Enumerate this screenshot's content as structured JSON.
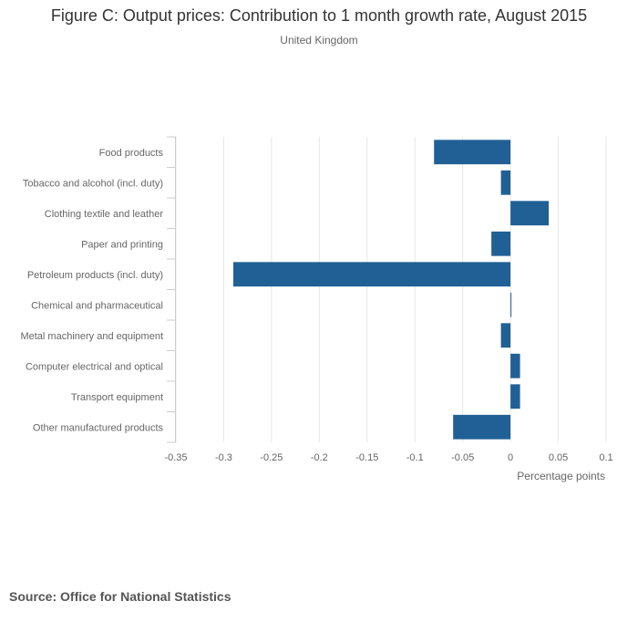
{
  "header": {
    "title": "Figure C: Output prices: Contribution to 1 month growth rate, August 2015",
    "subtitle": "United Kingdom"
  },
  "footer": {
    "source": "Source: Office for National Statistics"
  },
  "colors": {
    "bar": "#206095",
    "grid": "#e6e6e6",
    "axis_text": "#666666"
  },
  "chart_data": {
    "type": "bar",
    "orientation": "horizontal",
    "title": "Figure C: Output prices: Contribution to 1 month growth rate, August 2015",
    "subtitle": "United Kingdom",
    "xlabel": "Percentage points",
    "ylabel": "",
    "xlim": [
      -0.35,
      0.1
    ],
    "xticks": [
      -0.35,
      -0.3,
      -0.25,
      -0.2,
      -0.15,
      -0.1,
      -0.05,
      0,
      0.05,
      0.1
    ],
    "xtick_labels": [
      "-0.35",
      "-0.3",
      "-0.25",
      "-0.2",
      "-0.15",
      "-0.1",
      "-0.05",
      "0",
      "0.05",
      "0.1"
    ],
    "grid": true,
    "categories": [
      "Food products",
      "Tobacco and alcohol (incl. duty)",
      "Clothing textile and leather",
      "Paper and printing",
      "Petroleum products (incl. duty)",
      "Chemical and pharmaceutical",
      "Metal machinery and equipment",
      "Computer electrical and optical",
      "Transport equipment",
      "Other manufactured products"
    ],
    "values": [
      -0.08,
      -0.01,
      0.04,
      -0.02,
      -0.29,
      0.0,
      -0.01,
      0.01,
      0.01,
      -0.06
    ]
  }
}
